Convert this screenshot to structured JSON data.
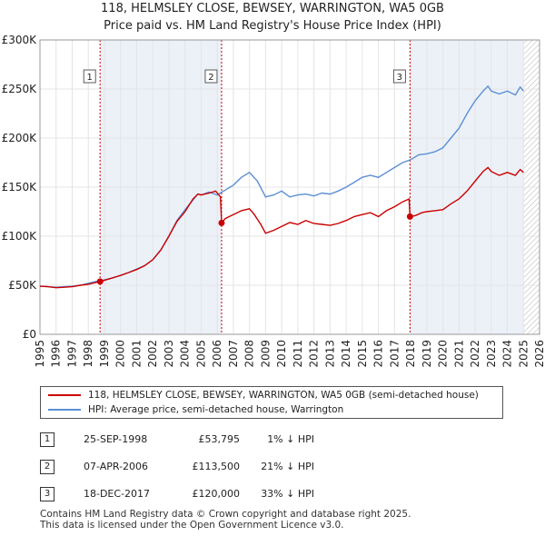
{
  "title_line1": "118, HELMSLEY CLOSE, BEWSEY, WARRINGTON, WA5 0GB",
  "title_line2": "Price paid vs. HM Land Registry's House Price Index (HPI)",
  "colors": {
    "property": "#cc0000",
    "hpi": "#5b8fd4",
    "band": "#dde6f3"
  },
  "chart_data": {
    "type": "line",
    "title": "118, HELMSLEY CLOSE, BEWSEY, WARRINGTON, WA5 0GB",
    "subtitle": "Price paid vs. HM Land Registry's House Price Index (HPI)",
    "xlim": [
      1995,
      2026
    ],
    "ylim": [
      0,
      300000
    ],
    "x_ticks": [
      1995,
      1996,
      1997,
      1998,
      1999,
      2000,
      2001,
      2002,
      2003,
      2004,
      2005,
      2006,
      2007,
      2008,
      2009,
      2010,
      2011,
      2012,
      2013,
      2014,
      2015,
      2016,
      2017,
      2018,
      2019,
      2020,
      2021,
      2022,
      2023,
      2024,
      2025,
      2026
    ],
    "y_ticks": [
      {
        "value": 0,
        "label": "£0"
      },
      {
        "value": 50000,
        "label": "£50K"
      },
      {
        "value": 100000,
        "label": "£100K"
      },
      {
        "value": 150000,
        "label": "£150K"
      },
      {
        "value": 200000,
        "label": "£200K"
      },
      {
        "value": 250000,
        "label": "£250K"
      },
      {
        "value": 300000,
        "label": "£300K"
      }
    ],
    "grid": true,
    "forecast_start": 2025.0,
    "sale_shading": [
      {
        "from": 1998.73,
        "to": 2006.27
      },
      {
        "from": 2017.96,
        "to": 2025.0
      }
    ],
    "series": [
      {
        "name": "118, HELMSLEY CLOSE, BEWSEY, WARRINGTON, WA5 0GB (semi-detached house)",
        "color": "#cc0000",
        "points": [
          [
            1995.0,
            49000
          ],
          [
            1995.5,
            48500
          ],
          [
            1996.0,
            47500
          ],
          [
            1996.5,
            48000
          ],
          [
            1997.0,
            48500
          ],
          [
            1997.5,
            50000
          ],
          [
            1998.0,
            51000
          ],
          [
            1998.5,
            53000
          ],
          [
            1998.73,
            53795
          ],
          [
            1999.0,
            55000
          ],
          [
            1999.5,
            57500
          ],
          [
            2000.0,
            60000
          ],
          [
            2000.5,
            63000
          ],
          [
            2001.0,
            66000
          ],
          [
            2001.5,
            70000
          ],
          [
            2002.0,
            76000
          ],
          [
            2002.5,
            86000
          ],
          [
            2003.0,
            100000
          ],
          [
            2003.5,
            115000
          ],
          [
            2004.0,
            125000
          ],
          [
            2004.5,
            138000
          ],
          [
            2004.8,
            143000
          ],
          [
            2005.0,
            142000
          ],
          [
            2005.5,
            144000
          ],
          [
            2005.9,
            146000
          ],
          [
            2006.2,
            140000
          ],
          [
            2006.27,
            113500
          ],
          [
            2006.5,
            118000
          ],
          [
            2007.0,
            122000
          ],
          [
            2007.5,
            126000
          ],
          [
            2008.0,
            128000
          ],
          [
            2008.3,
            122000
          ],
          [
            2008.7,
            112000
          ],
          [
            2009.0,
            103000
          ],
          [
            2009.5,
            106000
          ],
          [
            2010.0,
            110000
          ],
          [
            2010.5,
            114000
          ],
          [
            2011.0,
            112000
          ],
          [
            2011.5,
            116000
          ],
          [
            2012.0,
            113000
          ],
          [
            2012.5,
            112000
          ],
          [
            2013.0,
            111000
          ],
          [
            2013.5,
            113000
          ],
          [
            2014.0,
            116000
          ],
          [
            2014.5,
            120000
          ],
          [
            2015.0,
            122000
          ],
          [
            2015.5,
            124000
          ],
          [
            2016.0,
            120000
          ],
          [
            2016.5,
            126000
          ],
          [
            2017.0,
            130000
          ],
          [
            2017.5,
            135000
          ],
          [
            2017.9,
            138000
          ],
          [
            2017.96,
            120000
          ],
          [
            2018.3,
            121000
          ],
          [
            2018.7,
            124000
          ],
          [
            2019.0,
            125000
          ],
          [
            2019.5,
            126000
          ],
          [
            2020.0,
            127000
          ],
          [
            2020.5,
            133000
          ],
          [
            2021.0,
            138000
          ],
          [
            2021.5,
            146000
          ],
          [
            2022.0,
            156000
          ],
          [
            2022.5,
            166000
          ],
          [
            2022.8,
            170000
          ],
          [
            2023.0,
            166000
          ],
          [
            2023.5,
            162000
          ],
          [
            2024.0,
            165000
          ],
          [
            2024.5,
            162000
          ],
          [
            2024.8,
            168000
          ],
          [
            2025.0,
            165000
          ]
        ]
      },
      {
        "name": "HPI: Average price, semi-detached house, Warrington",
        "color": "#5b8fd4",
        "points": [
          [
            1995.0,
            49000
          ],
          [
            1995.5,
            48500
          ],
          [
            1996.0,
            48000
          ],
          [
            1996.5,
            48500
          ],
          [
            1997.0,
            49000
          ],
          [
            1997.5,
            50000
          ],
          [
            1998.0,
            52000
          ],
          [
            1998.5,
            54000
          ],
          [
            1999.0,
            55500
          ],
          [
            1999.5,
            57500
          ],
          [
            2000.0,
            60000
          ],
          [
            2000.5,
            63000
          ],
          [
            2001.0,
            66500
          ],
          [
            2001.5,
            70000
          ],
          [
            2002.0,
            76000
          ],
          [
            2002.5,
            86000
          ],
          [
            2003.0,
            100000
          ],
          [
            2003.5,
            116000
          ],
          [
            2004.0,
            127000
          ],
          [
            2004.5,
            137000
          ],
          [
            2004.8,
            143000
          ],
          [
            2005.0,
            142000
          ],
          [
            2005.5,
            145000
          ],
          [
            2006.0,
            142000
          ],
          [
            2006.5,
            147000
          ],
          [
            2007.0,
            152000
          ],
          [
            2007.5,
            160000
          ],
          [
            2008.0,
            165000
          ],
          [
            2008.5,
            156000
          ],
          [
            2009.0,
            140000
          ],
          [
            2009.5,
            142000
          ],
          [
            2010.0,
            146000
          ],
          [
            2010.5,
            140000
          ],
          [
            2011.0,
            142000
          ],
          [
            2011.5,
            143000
          ],
          [
            2012.0,
            141000
          ],
          [
            2012.5,
            144000
          ],
          [
            2013.0,
            143000
          ],
          [
            2013.5,
            146000
          ],
          [
            2014.0,
            150000
          ],
          [
            2014.5,
            155000
          ],
          [
            2015.0,
            160000
          ],
          [
            2015.5,
            162000
          ],
          [
            2016.0,
            160000
          ],
          [
            2016.5,
            165000
          ],
          [
            2017.0,
            170000
          ],
          [
            2017.5,
            175000
          ],
          [
            2018.0,
            178000
          ],
          [
            2018.5,
            183000
          ],
          [
            2019.0,
            184000
          ],
          [
            2019.5,
            186000
          ],
          [
            2020.0,
            190000
          ],
          [
            2020.5,
            200000
          ],
          [
            2021.0,
            210000
          ],
          [
            2021.5,
            225000
          ],
          [
            2022.0,
            238000
          ],
          [
            2022.5,
            248000
          ],
          [
            2022.8,
            253000
          ],
          [
            2023.0,
            248000
          ],
          [
            2023.5,
            245000
          ],
          [
            2024.0,
            248000
          ],
          [
            2024.5,
            244000
          ],
          [
            2024.8,
            252000
          ],
          [
            2025.0,
            248000
          ]
        ]
      }
    ],
    "markers": [
      {
        "label": "1",
        "x": 1998.73,
        "y": 53795
      },
      {
        "label": "2",
        "x": 2006.27,
        "y": 113500
      },
      {
        "label": "3",
        "x": 2017.96,
        "y": 120000
      }
    ]
  },
  "legend": {
    "property_label": "118, HELMSLEY CLOSE, BEWSEY, WARRINGTON, WA5 0GB (semi-detached house)",
    "hpi_label": "HPI: Average price, semi-detached house, Warrington"
  },
  "sales": [
    {
      "num": "1",
      "date": "25-SEP-1998",
      "price": "£53,795",
      "hpi": "1% ↓ HPI"
    },
    {
      "num": "2",
      "date": "07-APR-2006",
      "price": "£113,500",
      "hpi": "21% ↓ HPI"
    },
    {
      "num": "3",
      "date": "18-DEC-2017",
      "price": "£120,000",
      "hpi": "33% ↓ HPI"
    }
  ],
  "footer_line1": "Contains HM Land Registry data © Crown copyright and database right 2025.",
  "footer_line2": "This data is licensed under the Open Government Licence v3.0."
}
